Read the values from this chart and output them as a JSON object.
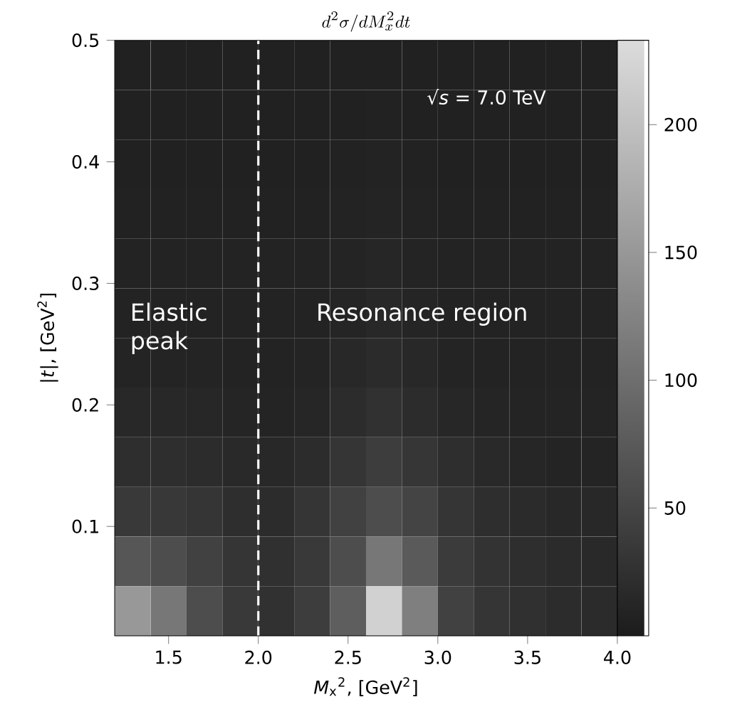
{
  "chart_data": {
    "type": "heatmap",
    "title": "d^2\\sigma/dM_x^2dt",
    "xlabel": "*M*$_{x}$$^{2}$, [GeV$^{2}$]",
    "ylabel": "|*t*|, [GeV$^{2}$]",
    "annotations": [
      "√*s* = 7.0 TeV",
      "Elastic peak",
      "Resonance region"
    ],
    "xlim": [
      1.2,
      4.0
    ],
    "ylim": [
      0.01,
      0.5
    ],
    "xticks": [
      1.5,
      {
        "value": 2.0,
        "label": "2.0"
      },
      2.5,
      {
        "value": 3.0,
        "label": "3.0"
      },
      3.5,
      {
        "value": 4.0,
        "label": "4.0"
      }
    ],
    "yticks": [
      0.1,
      0.2,
      0.3,
      0.4,
      0.5
    ],
    "clim": [
      0,
      233
    ],
    "cticks": [
      50,
      100,
      150,
      200
    ],
    "ref_lines": [
      {
        "axis": "x",
        "value": 2.0,
        "color": "#ffffff",
        "line_style": "dashed"
      }
    ],
    "cells": [
      [
        6,
        6,
        6,
        6,
        6,
        6,
        6,
        6,
        6,
        6,
        6,
        6,
        6,
        6
      ],
      [
        6,
        6,
        6,
        6,
        6,
        6,
        6,
        7,
        6,
        6,
        6,
        6,
        6,
        6
      ],
      [
        6,
        6,
        6,
        6,
        6,
        6,
        7,
        8,
        7,
        6,
        6,
        6,
        6,
        6
      ],
      [
        7,
        7,
        7,
        7,
        7,
        7,
        8,
        10,
        8,
        7,
        7,
        7,
        7,
        7
      ],
      [
        8,
        8,
        8,
        8,
        8,
        8,
        10,
        12,
        10,
        8,
        8,
        8,
        8,
        8
      ],
      [
        9,
        9,
        9,
        9,
        9,
        9,
        11,
        14,
        11,
        9,
        9,
        9,
        9,
        9
      ],
      [
        10,
        10,
        10,
        9,
        9,
        10,
        14,
        18,
        14,
        10,
        9,
        9,
        9,
        9
      ],
      [
        14,
        14,
        13,
        11,
        10,
        12,
        20,
        25,
        20,
        13,
        11,
        10,
        10,
        10
      ],
      [
        22,
        22,
        20,
        16,
        14,
        20,
        30,
        40,
        32,
        22,
        16,
        12,
        10,
        10
      ],
      [
        35,
        34,
        30,
        22,
        20,
        30,
        45,
        60,
        48,
        30,
        22,
        18,
        15,
        14
      ],
      [
        70,
        60,
        45,
        30,
        24,
        35,
        60,
        110,
        75,
        38,
        28,
        22,
        18,
        16
      ],
      [
        150,
        110,
        60,
        35,
        25,
        40,
        80,
        220,
        120,
        45,
        30,
        24,
        20,
        18
      ]
    ]
  }
}
